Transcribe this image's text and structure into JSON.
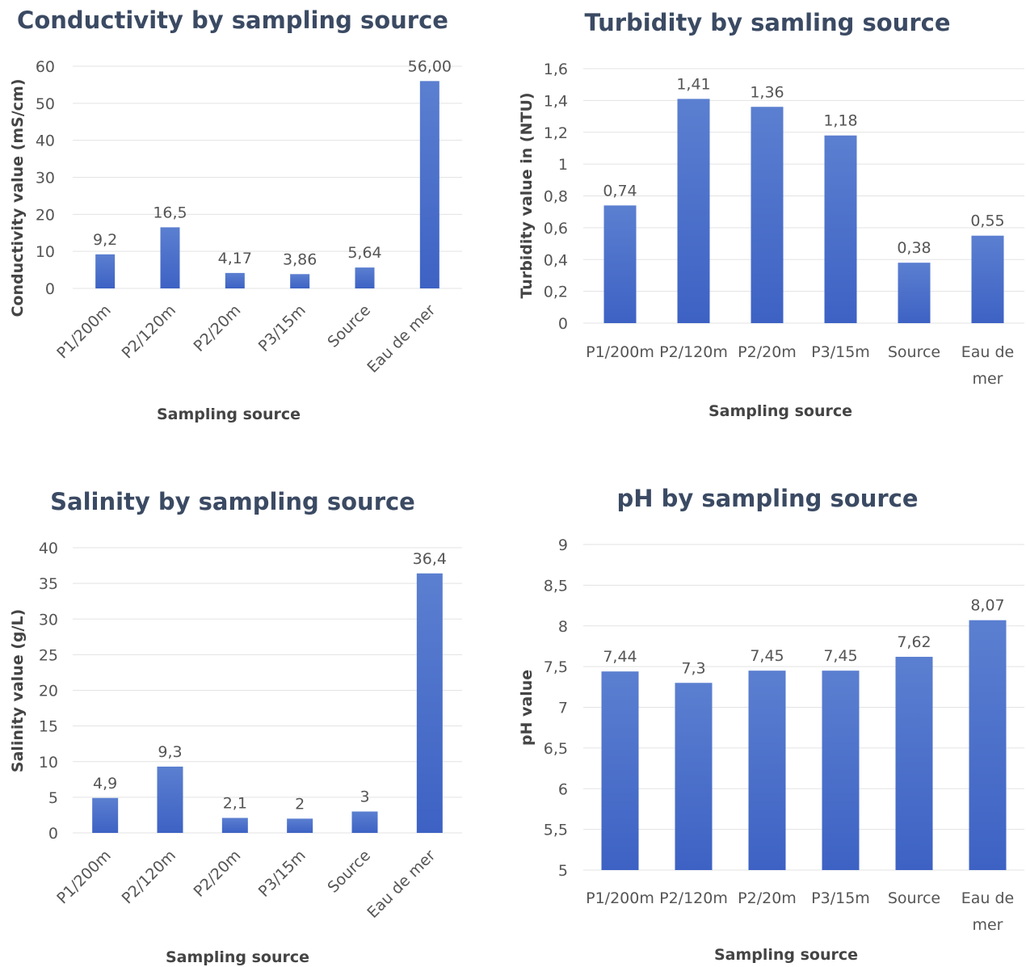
{
  "colors": {
    "bar_top": "#5b7fd0",
    "bar_bottom": "#3d62c4",
    "grid": "#e3e3e3",
    "title": "#3b4a63"
  },
  "chart_data": [
    {
      "id": "conductivity",
      "type": "bar",
      "title": "Conductivity by sampling source",
      "xlabel": "Sampling source",
      "ylabel": "Conductivity value (mS/cm)",
      "categories": [
        "P1/200m",
        "P2/120m",
        "P2/20m",
        "P3/15m",
        "Source",
        "Eau de mer"
      ],
      "values": [
        9.2,
        16.5,
        4.17,
        3.86,
        5.64,
        56.0
      ],
      "data_labels": [
        "9,2",
        "16,5",
        "4,17",
        "3,86",
        "5,64",
        "56,00"
      ],
      "ylim": [
        0,
        60
      ],
      "yticks": [
        "0",
        "10",
        "20",
        "30",
        "40",
        "50",
        "60"
      ],
      "rotated_categories": true,
      "grid": true
    },
    {
      "id": "turbidity",
      "type": "bar",
      "title": "Turbidity by samling source",
      "xlabel": "Sampling source",
      "ylabel": "Turbidity value in  (NTU)",
      "categories": [
        "P1/200m",
        "P2/120m",
        "P2/20m",
        "P3/15m",
        "Source",
        "Eau de mer"
      ],
      "values": [
        0.74,
        1.41,
        1.36,
        1.18,
        0.38,
        0.55
      ],
      "data_labels": [
        "0,74",
        "1,41",
        "1,36",
        "1,18",
        "0,38",
        "0,55"
      ],
      "ylim": [
        0,
        1.6
      ],
      "yticks": [
        "0",
        "0,2",
        "0,4",
        "0,6",
        "0,8",
        "1",
        "1,2",
        "1,4",
        "1,6"
      ],
      "rotated_categories": false,
      "grid": true
    },
    {
      "id": "salinity",
      "type": "bar",
      "title": "Salinity by sampling source",
      "xlabel": "Sampling source",
      "ylabel": "Salinity value (g/L)",
      "categories": [
        "P1/200m",
        "P2/120m",
        "P2/20m",
        "P3/15m",
        "Source",
        "Eau de mer"
      ],
      "values": [
        4.9,
        9.3,
        2.1,
        2,
        3,
        36.4
      ],
      "data_labels": [
        "4,9",
        "9,3",
        "2,1",
        "2",
        "3",
        "36,4"
      ],
      "ylim": [
        0,
        40
      ],
      "yticks": [
        "0",
        "5",
        "10",
        "15",
        "20",
        "25",
        "30",
        "35",
        "40"
      ],
      "rotated_categories": true,
      "grid": true
    },
    {
      "id": "ph",
      "type": "bar",
      "title": "pH by sampling source",
      "xlabel": "Sampling source",
      "ylabel": "pH value",
      "categories": [
        "P1/200m",
        "P2/120m",
        "P2/20m",
        "P3/15m",
        "Source",
        "Eau de mer"
      ],
      "values": [
        7.44,
        7.3,
        7.45,
        7.45,
        7.62,
        8.07
      ],
      "data_labels": [
        "7,44",
        "7,3",
        "7,45",
        "7,45",
        "7,62",
        "8,07"
      ],
      "ylim": [
        5,
        9
      ],
      "yticks": [
        "5",
        "5,5",
        "6",
        "6,5",
        "7",
        "7,5",
        "8",
        "8,5",
        "9"
      ],
      "rotated_categories": false,
      "grid": true
    }
  ]
}
